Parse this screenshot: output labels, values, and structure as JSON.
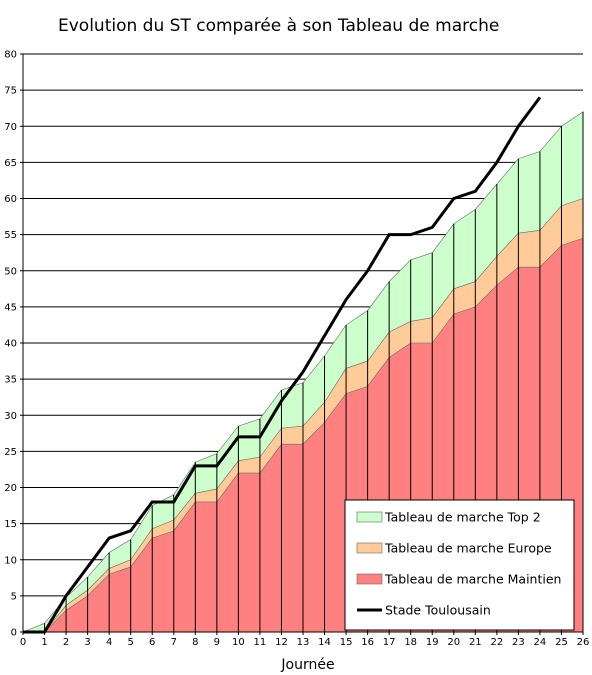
{
  "chart_data": {
    "type": "area",
    "title": "Evolution du ST comparée à son Tableau de marche",
    "xlabel": "Journée",
    "ylabel": "",
    "xlim": [
      0,
      26
    ],
    "ylim": [
      0,
      80
    ],
    "x_ticks": [
      0,
      1,
      2,
      3,
      4,
      5,
      6,
      7,
      8,
      9,
      10,
      11,
      12,
      13,
      14,
      15,
      16,
      17,
      18,
      19,
      20,
      21,
      22,
      23,
      24,
      25,
      26
    ],
    "y_ticks": [
      0,
      5,
      10,
      15,
      20,
      25,
      30,
      35,
      40,
      45,
      50,
      55,
      60,
      65,
      70,
      75,
      80
    ],
    "grid": "horizontal",
    "legend_position": "bottom-right",
    "x": [
      0,
      1,
      2,
      3,
      4,
      5,
      6,
      7,
      8,
      9,
      10,
      11,
      12,
      13,
      14,
      15,
      16,
      17,
      18,
      19,
      20,
      21,
      22,
      23,
      24,
      25,
      26
    ],
    "series": [
      {
        "name": "Tableau de marche Maintien",
        "kind": "area",
        "color": "#ff8080",
        "values": [
          0,
          0,
          3,
          5,
          8,
          9,
          13,
          14,
          18,
          18,
          22,
          22,
          26,
          26,
          29,
          33,
          34,
          38,
          40,
          40,
          44,
          45,
          48,
          50.5,
          50.5,
          53.5,
          54.5
        ]
      },
      {
        "name": "Tableau de marche Europe",
        "kind": "area",
        "color": "#ffcc99",
        "values": [
          0,
          0,
          3.7,
          5.8,
          8.8,
          10,
          14.3,
          15.5,
          19.2,
          19.8,
          23.7,
          24.2,
          28.2,
          28.5,
          31.8,
          36.5,
          37.5,
          41.5,
          43,
          43.5,
          47.5,
          48.5,
          52,
          55.2,
          55.6,
          59,
          60
        ]
      },
      {
        "name": "Tableau de marche Top 2",
        "kind": "area",
        "color": "#ccffcc",
        "values": [
          0,
          1.2,
          4.8,
          7.6,
          11,
          12.8,
          17.5,
          19,
          23.5,
          24.7,
          28.5,
          29.5,
          33.5,
          34.5,
          38.2,
          42.5,
          44.5,
          48.5,
          51.5,
          52.5,
          56.5,
          58.5,
          62,
          65.5,
          66.5,
          70,
          72
        ]
      },
      {
        "name": "Stade Toulousain",
        "kind": "line",
        "color": "#000000",
        "x": [
          0,
          1,
          2,
          3,
          4,
          5,
          6,
          7,
          8,
          9,
          10,
          11,
          12,
          13,
          14,
          15,
          16,
          17,
          18,
          19,
          20,
          21,
          22,
          23,
          24
        ],
        "values": [
          0,
          0,
          5,
          9,
          13,
          14,
          18,
          18,
          23,
          23,
          27,
          27,
          32,
          36,
          41,
          46,
          50,
          55,
          55,
          56,
          60,
          61,
          65,
          70,
          74
        ]
      }
    ]
  }
}
